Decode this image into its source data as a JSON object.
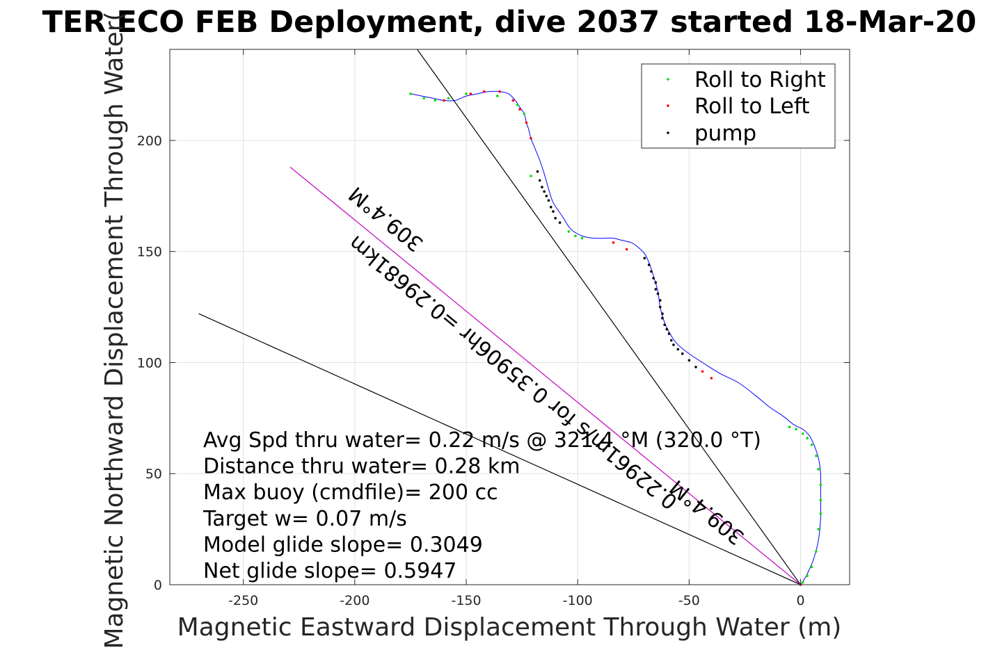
{
  "chart_data": {
    "type": "scatter",
    "title": "TER ECO FEB Deployment, dive 2037 started 18-Mar-20",
    "xlabel": "Magnetic Eastward Displacement Through Water (m)",
    "ylabel": "Magnetic Northward Displacement Through Water(",
    "xlim": [
      -283,
      22
    ],
    "ylim": [
      0,
      241
    ],
    "xticks": [
      -250,
      -200,
      -150,
      -100,
      -50,
      0
    ],
    "xtick_labels": [
      "-250",
      "-200",
      "-150",
      "-100",
      "-50",
      "0"
    ],
    "yticks": [
      0,
      50,
      100,
      150,
      200
    ],
    "ytick_labels": [
      "0",
      "50",
      "100",
      "150",
      "200"
    ],
    "grid": true,
    "legend_position": "top-right",
    "legend": [
      {
        "label": "Roll to Right",
        "color": "#00e000"
      },
      {
        "label": "Roll to Left",
        "color": "#ff0000"
      },
      {
        "label": "pump",
        "color": "#000000"
      }
    ],
    "track": {
      "name": "track",
      "color": "#0000ff",
      "x": [
        0,
        2,
        4,
        6,
        8,
        9,
        9,
        9,
        8,
        6,
        4,
        1,
        -3,
        -8,
        -14,
        -20,
        -28,
        -36,
        -44,
        -50,
        -55,
        -58,
        -61,
        -63,
        -64,
        -66,
        -68,
        -70,
        -73,
        -76,
        -80,
        -84,
        -88,
        -93,
        -98,
        -103,
        -107,
        -111,
        -113,
        -115,
        -117,
        -119,
        -121,
        -122,
        -123,
        -124,
        -126,
        -128,
        -131,
        -135,
        -140,
        -145,
        -150,
        -155,
        -160,
        -165,
        -170,
        -175
      ],
      "y": [
        0,
        3,
        7,
        12,
        20,
        30,
        40,
        50,
        57,
        63,
        67,
        70,
        72,
        76,
        80,
        85,
        91,
        95,
        100,
        104,
        108,
        112,
        118,
        125,
        132,
        139,
        145,
        149,
        152,
        154,
        155,
        156,
        156,
        156,
        157,
        160,
        166,
        172,
        178,
        185,
        191,
        196,
        201,
        205,
        208,
        212,
        215,
        218,
        221,
        222,
        222,
        221,
        220,
        218,
        218,
        219,
        220,
        221
      ]
    },
    "markers": {
      "roll_right": {
        "x": [
          1,
          3,
          5,
          7,
          8,
          9,
          9,
          9,
          8,
          7,
          5,
          3,
          1,
          -2,
          -5,
          -98,
          -101,
          -104,
          -121,
          -124,
          -127,
          -136,
          -150,
          -158,
          -164,
          -169,
          -175
        ],
        "y": [
          1,
          4,
          8,
          15,
          25,
          32,
          38,
          45,
          52,
          58,
          63,
          66,
          68,
          70,
          71,
          156,
          157,
          159,
          184,
          212,
          216,
          220,
          221,
          219,
          218,
          219,
          221
        ]
      },
      "roll_left": {
        "x": [
          0,
          -40,
          -44,
          -78,
          -84,
          -121,
          -123,
          -126,
          -129,
          -135,
          -142,
          -148,
          -160
        ],
        "y": [
          0,
          93,
          96,
          151,
          154,
          201,
          208,
          214,
          218,
          222,
          222,
          221,
          218
        ]
      },
      "pump": {
        "x": [
          -47,
          -50,
          -53,
          -55,
          -57,
          -58,
          -59,
          -60,
          -61,
          -62,
          -62,
          -63,
          -63,
          -64,
          -65,
          -65,
          -66,
          -67,
          -68,
          -70,
          -108,
          -110,
          -111,
          -112,
          -113,
          -114,
          -115,
          -116,
          -117,
          -118
        ],
        "y": [
          98,
          101,
          104,
          106,
          108,
          110,
          113,
          115,
          117,
          120,
          122,
          125,
          128,
          131,
          133,
          136,
          138,
          141,
          144,
          147,
          163,
          165,
          168,
          170,
          173,
          175,
          177,
          179,
          182,
          186
        ]
      }
    },
    "reference_lines": [
      {
        "name": "heading-line-steep",
        "color": "#000000",
        "x": [
          0,
          -172
        ],
        "y": [
          0,
          241
        ]
      },
      {
        "name": "avg-course-line",
        "color": "#c000c0",
        "x": [
          0,
          -229
        ],
        "y": [
          0,
          188
        ]
      },
      {
        "name": "heading-line-shallow",
        "color": "#000000",
        "x": [
          0,
          -270
        ],
        "y": [
          0,
          122
        ]
      }
    ],
    "rotated_labels": [
      {
        "text": "309.4°M",
        "x": -184,
        "y": 167,
        "angle": 219.4
      },
      {
        "text": "0.22961m/s for 0.35906hr =0.29681km",
        "x": -127,
        "y": 98,
        "angle": 219.4
      },
      {
        "text": "309.4°M",
        "x": -40,
        "y": 35,
        "angle": 219.4
      }
    ],
    "annotations": [
      "Avg Spd thru water=  0.22 m/s @ 321.4 °M (320.0 °T)",
      "Distance thru water=  0.28 km",
      "Max buoy (cmdfile)= 200 cc",
      "Target w= 0.07 m/s",
      "Model glide slope= 0.3049",
      "Net glide slope= 0.5947"
    ]
  }
}
